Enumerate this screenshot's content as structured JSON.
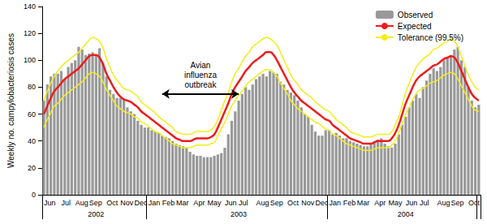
{
  "chart_data": {
    "type": "bar",
    "y_label": "Weekly no. campylobacteriosis cases",
    "ylim": [
      0,
      140
    ],
    "yticks": [
      0,
      20,
      40,
      60,
      80,
      100,
      120,
      140
    ],
    "grid": false,
    "legend": "top-right",
    "categories": [
      "Jun",
      null,
      null,
      null,
      null,
      "Jul",
      null,
      null,
      null,
      "Aug",
      null,
      null,
      null,
      "Sep",
      null,
      null,
      null,
      null,
      "Oct",
      null,
      null,
      null,
      "Nov",
      null,
      null,
      null,
      "Dec",
      null,
      null,
      null,
      "Jan",
      null,
      null,
      null,
      "Feb",
      null,
      null,
      null,
      "Mar",
      null,
      null,
      null,
      null,
      "Apr",
      null,
      null,
      null,
      "May",
      null,
      null,
      null,
      null,
      "Jun",
      null,
      null,
      null,
      "Jul",
      null,
      null,
      null,
      null,
      "Aug",
      null,
      null,
      null,
      "Sep",
      null,
      null,
      null,
      null,
      "Oct",
      null,
      null,
      null,
      "Nov",
      null,
      null,
      null,
      "Dec",
      null,
      null,
      null,
      "Jan",
      null,
      null,
      null,
      "Feb",
      null,
      null,
      null,
      "Mar",
      null,
      null,
      null,
      null,
      "Apr",
      null,
      null,
      null,
      "May",
      null,
      null,
      null,
      null,
      "Jun",
      null,
      null,
      null,
      "Jul",
      null,
      null,
      null,
      null,
      "Aug",
      null,
      null,
      null,
      "Sep",
      null,
      null,
      null,
      null,
      "Oct",
      null,
      null,
      null
    ],
    "x_groups": [
      "2002",
      "2002",
      "2002",
      "2002",
      "2002",
      "2002",
      "2002",
      "2002",
      "2002",
      "2002",
      "2002",
      "2002",
      "2002",
      "2002",
      "2002",
      "2002",
      "2002",
      "2002",
      "2002",
      "2002",
      "2002",
      "2002",
      "2002",
      "2002",
      "2002",
      "2002",
      "2002",
      "2002",
      "2002",
      "2002",
      "2003",
      "2003",
      "2003",
      "2003",
      "2003",
      "2003",
      "2003",
      "2003",
      "2003",
      "2003",
      "2003",
      "2003",
      "2003",
      "2003",
      "2003",
      "2003",
      "2003",
      "2003",
      "2003",
      "2003",
      "2003",
      "2003",
      "2003",
      "2003",
      "2003",
      "2003",
      "2003",
      "2003",
      "2003",
      "2003",
      "2003",
      "2003",
      "2003",
      "2003",
      "2003",
      "2003",
      "2003",
      "2003",
      "2003",
      "2003",
      "2003",
      "2003",
      "2003",
      "2003",
      "2003",
      "2003",
      "2003",
      "2003",
      "2003",
      "2003",
      "2003",
      "2003",
      "2004",
      "2004",
      "2004",
      "2004",
      "2004",
      "2004",
      "2004",
      "2004",
      "2004",
      "2004",
      "2004",
      "2004",
      "2004",
      "2004",
      "2004",
      "2004",
      "2004",
      "2004",
      "2004",
      "2004",
      "2004",
      "2004",
      "2004",
      "2004",
      "2004",
      "2004",
      "2004",
      "2004",
      "2004",
      "2004",
      "2004",
      "2004",
      "2004",
      "2004",
      "2004",
      "2004",
      "2004",
      "2004",
      "2004",
      "2004",
      "2004",
      "2004",
      "2004",
      "2004"
    ],
    "series": [
      {
        "name": "Observed",
        "type": "bar",
        "color": "#999999",
        "values": [
          70,
          82,
          88,
          90,
          90,
          92,
          86,
          95,
          98,
          100,
          110,
          108,
          104,
          105,
          106,
          104,
          109,
          98,
          88,
          78,
          75,
          72,
          72,
          71,
          65,
          62,
          60,
          55,
          52,
          50,
          50,
          48,
          47,
          46,
          44,
          43,
          42,
          40,
          38,
          37,
          36,
          35,
          32,
          30,
          29,
          29,
          28,
          28,
          28,
          29,
          30,
          31,
          35,
          45,
          55,
          62,
          70,
          75,
          80,
          78,
          82,
          86,
          88,
          90,
          88,
          92,
          91,
          90,
          84,
          82,
          78,
          76,
          74,
          70,
          65,
          60,
          58,
          52,
          47,
          44,
          44,
          48,
          48,
          45,
          46,
          44,
          42,
          42,
          40,
          39,
          38,
          37,
          36,
          36,
          38,
          40,
          41,
          42,
          38,
          36,
          35,
          38,
          45,
          52,
          58,
          65,
          70,
          75,
          72,
          80,
          85,
          90,
          94,
          92,
          95,
          100,
          102,
          104,
          108,
          110,
          100,
          95,
          80,
          70,
          65,
          67
        ]
      },
      {
        "name": "Expected",
        "type": "line",
        "color": "#ee1c1c",
        "line_style": "solid",
        "values": [
          60,
          66,
          72,
          77,
          80,
          83,
          86,
          88,
          90,
          92,
          94,
          97,
          100,
          103,
          104,
          104,
          102,
          97,
          90,
          85,
          80,
          76,
          73,
          71,
          70,
          69,
          67,
          65,
          62,
          60,
          58,
          56,
          54,
          52,
          50,
          48,
          46,
          44,
          42,
          41,
          40,
          40,
          40,
          41,
          42,
          42,
          42,
          42,
          43,
          45,
          50,
          56,
          62,
          68,
          75,
          80,
          84,
          88,
          92,
          95,
          98,
          100,
          102,
          104,
          106,
          106,
          104,
          100,
          95,
          90,
          85,
          80,
          76,
          73,
          70,
          68,
          66,
          64,
          62,
          60,
          58,
          56,
          55,
          52,
          50,
          48,
          46,
          44,
          42,
          41,
          40,
          39,
          38,
          38,
          38,
          39,
          40,
          40,
          40,
          40,
          42,
          46,
          52,
          60,
          68,
          74,
          80,
          85,
          88,
          90,
          92,
          94,
          96,
          97,
          99,
          101,
          102,
          103,
          102,
          98,
          92,
          86,
          80,
          75,
          72,
          70
        ]
      },
      {
        "name": "Tolerance (99.5%)",
        "type": "line",
        "color": "#f2ee1a",
        "line_style": "solid",
        "values": [
          70,
          77,
          83,
          88,
          92,
          95,
          98,
          100,
          102,
          104,
          106,
          109,
          112,
          115,
          117,
          116,
          114,
          109,
          101,
          95,
          89,
          85,
          82,
          79,
          78,
          77,
          75,
          73,
          69,
          67,
          65,
          63,
          61,
          58,
          56,
          54,
          52,
          50,
          47,
          46,
          45,
          45,
          45,
          46,
          47,
          47,
          47,
          47,
          48,
          51,
          56,
          63,
          70,
          76,
          84,
          90,
          94,
          99,
          103,
          106,
          110,
          112,
          114,
          116,
          117,
          116,
          114,
          111,
          106,
          100,
          95,
          89,
          85,
          82,
          78,
          76,
          74,
          72,
          69,
          67,
          65,
          63,
          62,
          59,
          56,
          54,
          52,
          50,
          47,
          46,
          45,
          44,
          43,
          43,
          43,
          44,
          45,
          45,
          45,
          45,
          47,
          52,
          58,
          67,
          76,
          83,
          89,
          95,
          98,
          101,
          103,
          105,
          108,
          109,
          111,
          113,
          114,
          116,
          114,
          110,
          103,
          96,
          89,
          84,
          80,
          78
        ]
      },
      {
        "name": "Tolerance (99.5%)",
        "type": "line",
        "color": "#f2ee1a",
        "line_style": "solid",
        "values": [
          50,
          56,
          61,
          66,
          68,
          71,
          74,
          76,
          78,
          80,
          82,
          84,
          87,
          90,
          91,
          90,
          88,
          84,
          78,
          74,
          70,
          66,
          64,
          62,
          61,
          60,
          58,
          57,
          54,
          53,
          51,
          49,
          47,
          46,
          44,
          42,
          40,
          38,
          37,
          36,
          35,
          35,
          35,
          36,
          37,
          37,
          37,
          37,
          38,
          39,
          44,
          49,
          54,
          60,
          66,
          70,
          74,
          77,
          81,
          84,
          86,
          88,
          90,
          92,
          93,
          93,
          91,
          88,
          83,
          79,
          75,
          70,
          67,
          64,
          62,
          60,
          58,
          56,
          54,
          53,
          51,
          49,
          48,
          45,
          44,
          42,
          40,
          38,
          37,
          36,
          35,
          34,
          33,
          33,
          33,
          34,
          35,
          35,
          35,
          35,
          37,
          40,
          46,
          53,
          60,
          65,
          71,
          75,
          78,
          79,
          81,
          83,
          84,
          85,
          87,
          89,
          90,
          91,
          90,
          86,
          81,
          76,
          71,
          66,
          63,
          62
        ]
      }
    ],
    "annotations": [
      {
        "text": "Avian influenza outbreak",
        "x_start": 34,
        "x_end": 56,
        "y": 75
      }
    ]
  }
}
